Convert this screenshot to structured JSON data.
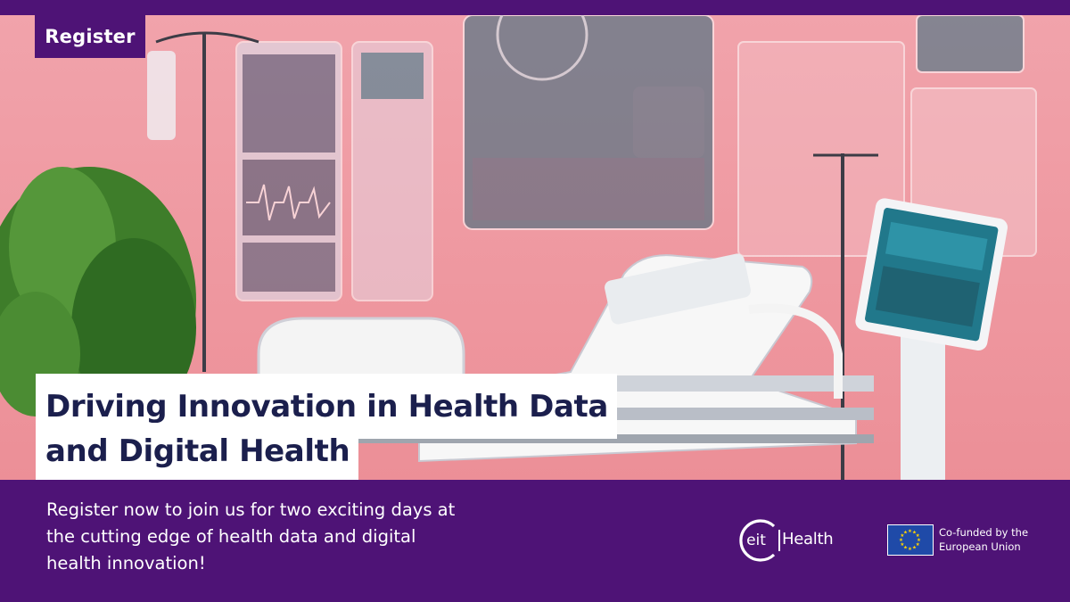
{
  "register_tag": "Register",
  "headline": {
    "line1": "Driving Innovation in Health Data",
    "line2": "and Digital Health"
  },
  "description": "Register now to join us for two exciting days at the cutting edge of health data and digital health innovation!",
  "logos": {
    "eit": {
      "text": "Health",
      "mark": "eit"
    },
    "eu": {
      "text": "Co-funded by the\nEuropean Union",
      "icon": "eu-flag-icon"
    }
  },
  "colors": {
    "brand_purple": "#4e1376",
    "headline_text": "#1b1f4d",
    "hero_pink": "#ef9aa2",
    "eu_blue": "#1f4aa8",
    "eu_star_yellow": "#ffd400"
  }
}
